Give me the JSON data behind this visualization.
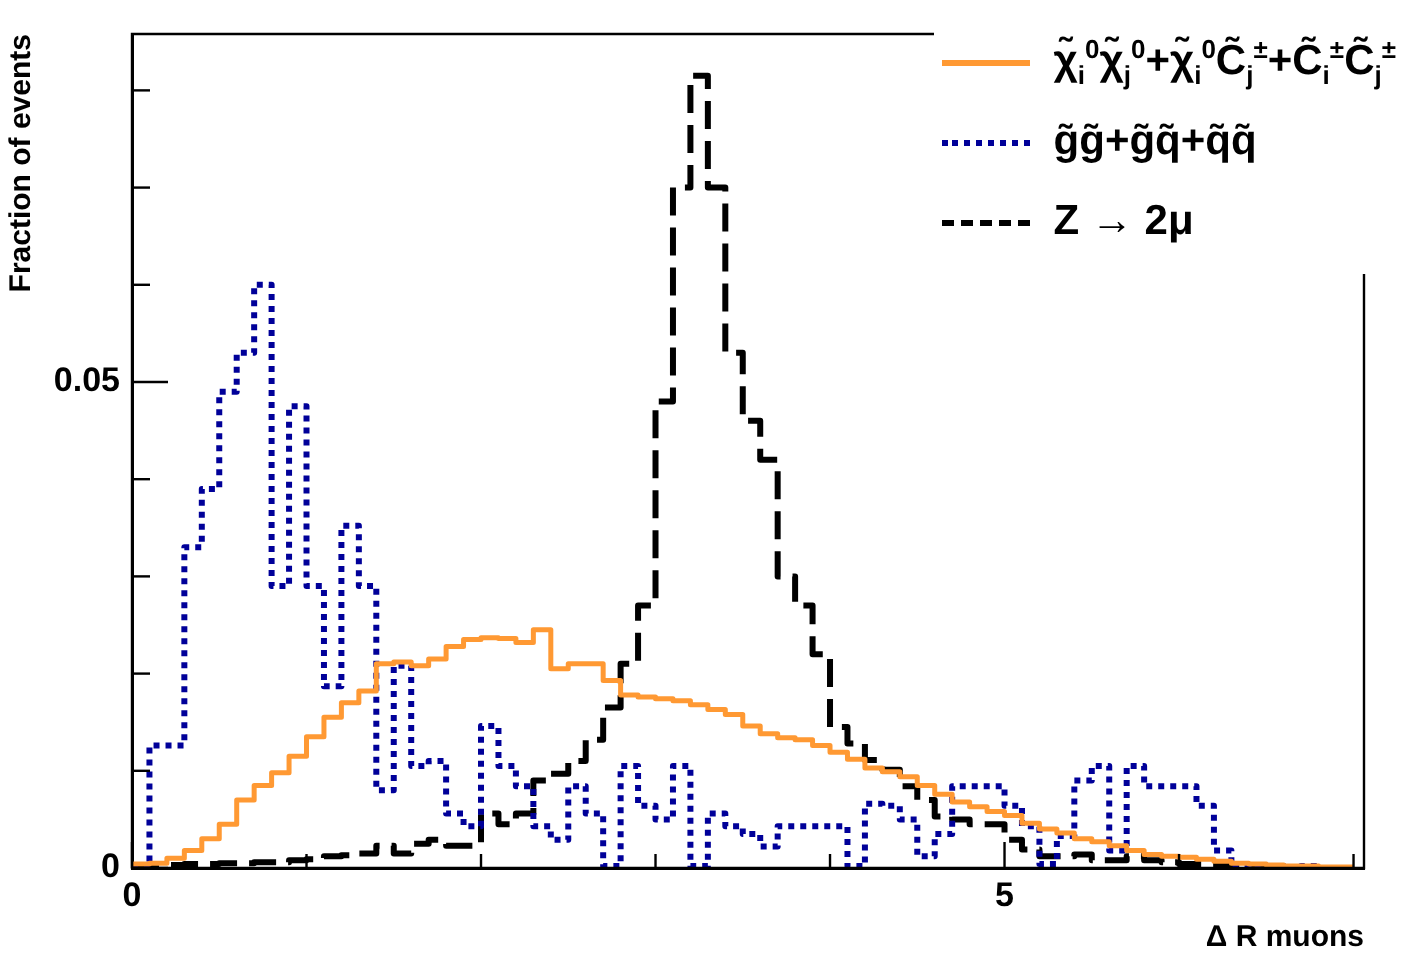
{
  "chart_data": {
    "type": "histogram",
    "xlabel": "Δ R muons",
    "ylabel": "Fraction of events",
    "bins": [
      0,
      0.1,
      0.2,
      0.3,
      0.4,
      0.5,
      0.6,
      0.7,
      0.8,
      0.9,
      1,
      1.1,
      1.2,
      1.3,
      1.4,
      1.5,
      1.6,
      1.7,
      1.8,
      1.9,
      2,
      2.1,
      2.2,
      2.3,
      2.4,
      2.5,
      2.6,
      2.7,
      2.8,
      2.9,
      3,
      3.1,
      3.2,
      3.3,
      3.4,
      3.5,
      3.6,
      3.7,
      3.8,
      3.9,
      4,
      4.1,
      4.2,
      4.3,
      4.4,
      4.5,
      4.6,
      4.7,
      4.8,
      4.9,
      5,
      5.1,
      5.2,
      5.3,
      5.4,
      5.5,
      5.6,
      5.7,
      5.8,
      5.9,
      6,
      6.1,
      6.2,
      6.3,
      6.4,
      6.5,
      6.6,
      6.7,
      6.8,
      6.9,
      7
    ],
    "series": [
      {
        "name": "χ̃$_{i}$$^{0}$χ̃$_{j}$$^{0}$+χ̃$_{i}$$^{0}$C̃$_{j}$$^{±}$+C̃$_{i}$$^{±}$C̃$_{j}$$^{±}$",
        "color": "#ff9933",
        "line_style": "solid",
        "values": [
          0.0004,
          0.0005,
          0.001,
          0.0018,
          0.003,
          0.0045,
          0.007,
          0.0085,
          0.0098,
          0.0115,
          0.0135,
          0.0155,
          0.017,
          0.0182,
          0.021,
          0.0212,
          0.0208,
          0.0215,
          0.0228,
          0.0235,
          0.0237,
          0.0236,
          0.0232,
          0.0245,
          0.0205,
          0.021,
          0.021,
          0.0193,
          0.0178,
          0.0176,
          0.0174,
          0.0172,
          0.0168,
          0.0163,
          0.0158,
          0.0146,
          0.0138,
          0.0134,
          0.0132,
          0.0126,
          0.0119,
          0.0112,
          0.0103,
          0.0099,
          0.0094,
          0.0085,
          0.0076,
          0.0068,
          0.0063,
          0.0058,
          0.0054,
          0.0046,
          0.004,
          0.0036,
          0.003,
          0.0027,
          0.0023,
          0.0018,
          0.0014,
          0.0012,
          0.0011,
          0.0009,
          0.0007,
          0.0005,
          0.0004,
          0.0003,
          0.0002,
          0.0002,
          0.0001,
          0.0001
        ]
      },
      {
        "name": "g̃g̃+g̃q̃+q̃q̃",
        "color": "#000099",
        "line_style": "dotted",
        "values": [
          0,
          0.0126,
          0.0126,
          0.033,
          0.039,
          0.049,
          0.053,
          0.06,
          0.029,
          0.0475,
          0.029,
          0.0187,
          0.0352,
          0.029,
          0.008,
          0.0208,
          0.0105,
          0.011,
          0.0056,
          0.0043,
          0.0146,
          0.0105,
          0.0084,
          0.0043,
          0.0029,
          0.0084,
          0.0056,
          0.0002,
          0.0105,
          0.0064,
          0.005,
          0.0105,
          0.0002,
          0.0056,
          0.0043,
          0.0035,
          0.0022,
          0.0043,
          0.0043,
          0.0043,
          0.0043,
          0.0002,
          0.0066,
          0.0064,
          0.005,
          0.0012,
          0.0035,
          0.0084,
          0.0084,
          0.0084,
          0.0064,
          0.0043,
          0.0004,
          0.0033,
          0.009,
          0.0105,
          0.0018,
          0.0105,
          0.0084,
          0.0084,
          0.0084,
          0.0064,
          0.0018,
          0,
          0.0002,
          0.0002,
          0,
          0.0002,
          0,
          0
        ]
      },
      {
        "name": "Z → 2μ",
        "color": "#000000",
        "line_style": "dashed",
        "values": [
          0.0002,
          0.0003,
          0.0003,
          0.0004,
          0.0004,
          0.0005,
          0.0005,
          0.0006,
          0.0006,
          0.0008,
          0.0009,
          0.0012,
          0.0013,
          0.0015,
          0.0023,
          0.0015,
          0.0025,
          0.0029,
          0.0023,
          0.0023,
          0.0056,
          0.0045,
          0.0056,
          0.009,
          0.0097,
          0.011,
          0.0132,
          0.0165,
          0.021,
          0.027,
          0.048,
          0.07,
          0.0815,
          0.07,
          0.053,
          0.046,
          0.042,
          0.03,
          0.027,
          0.022,
          0.0145,
          0.0128,
          0.0111,
          0.0101,
          0.0084,
          0.007,
          0.0053,
          0.005,
          0.0045,
          0.0045,
          0.0029,
          0.0019,
          0.0012,
          0.0012,
          0.0014,
          0.0008,
          0.0008,
          0.0012,
          0.0008,
          0.0006,
          0.0004,
          0.0004,
          0.0004,
          0.0002,
          0.0002,
          0.0001,
          0.0001,
          0,
          0,
          0
        ]
      }
    ],
    "xlim": [
      0,
      7.06
    ],
    "xticks": [
      0,
      {
        "value": 1,
        "label": null
      },
      {
        "value": 2,
        "label": null
      },
      {
        "value": 3,
        "label": null
      },
      {
        "value": 4,
        "label": null
      },
      5,
      {
        "value": 6,
        "label": null
      },
      {
        "value": 7,
        "label": null
      }
    ],
    "ylim": [
      0,
      0.0858
    ],
    "yticks": [
      0,
      {
        "value": 0.01,
        "label": null
      },
      {
        "value": 0.02,
        "label": null
      },
      {
        "value": 0.03,
        "label": null
      },
      {
        "value": 0.04,
        "label": null
      },
      0.05,
      {
        "value": 0.06,
        "label": null
      },
      {
        "value": 0.07,
        "label": null
      },
      {
        "value": 0.08,
        "label": null
      }
    ],
    "grid": false,
    "legend": "top right",
    "marker": "none"
  }
}
